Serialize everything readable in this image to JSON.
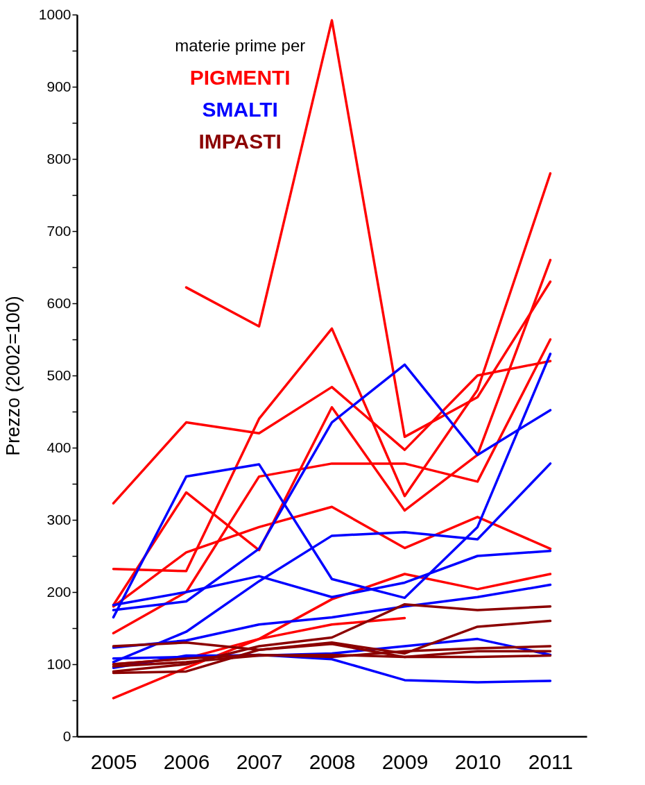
{
  "chart_data": {
    "type": "line",
    "ylabel": "Prezzo (2002=100)",
    "legend_title": "materie prime per",
    "legend": "top left",
    "grid": false,
    "categories": [
      "2005",
      "2006",
      "2007",
      "2008",
      "2009",
      "2010",
      "2011"
    ],
    "ylim": [
      0,
      1000
    ],
    "yticks": [
      0,
      {
        "value": 50,
        "label": null
      },
      100,
      {
        "value": 150,
        "label": null
      },
      200,
      {
        "value": 250,
        "label": null
      },
      300,
      {
        "value": 350,
        "label": null
      },
      400,
      {
        "value": 450,
        "label": null
      },
      500,
      {
        "value": 550,
        "label": null
      },
      600,
      {
        "value": 650,
        "label": null
      },
      700,
      {
        "value": 750,
        "label": null
      },
      800,
      {
        "value": 850,
        "label": null
      },
      900,
      {
        "value": 950,
        "label": null
      },
      1000
    ],
    "series": [
      {
        "name": "PIGMENTI",
        "color": "#ff0000",
        "values": [
          null,
          622,
          568,
          992,
          415,
          470,
          630
        ]
      },
      {
        "color": "#ff0000",
        "values": [
          323,
          435,
          420,
          484,
          397,
          500,
          520
        ]
      },
      {
        "color": "#ff0000",
        "values": [
          232,
          229,
          440,
          565,
          333,
          480,
          780
        ]
      },
      {
        "color": "#ff0000",
        "values": [
          182,
          338,
          258,
          456,
          313,
          390,
          660
        ]
      },
      {
        "color": "#ff0000",
        "values": [
          180,
          255,
          290,
          318,
          261,
          304,
          260
        ]
      },
      {
        "color": "#ff0000",
        "values": [
          143,
          200,
          360,
          378,
          378,
          353,
          550
        ]
      },
      {
        "color": "#ff0000",
        "values": [
          100,
          108,
          135,
          155,
          164,
          null,
          null
        ]
      },
      {
        "color": "#ff0000",
        "values": [
          53,
          95,
          135,
          190,
          225,
          204,
          225
        ]
      },
      {
        "name": "SMALTI",
        "color": "#0000ff",
        "values": [
          165,
          360,
          377,
          218,
          192,
          290,
          530
        ]
      },
      {
        "color": "#0000ff",
        "values": [
          175,
          187,
          260,
          435,
          515,
          390,
          452
        ]
      },
      {
        "color": "#0000ff",
        "values": [
          103,
          145,
          215,
          278,
          283,
          273,
          378
        ]
      },
      {
        "color": "#0000ff",
        "values": [
          182,
          200,
          222,
          193,
          213,
          250,
          257
        ]
      },
      {
        "color": "#0000ff",
        "values": [
          123,
          133,
          155,
          165,
          180,
          193,
          210
        ]
      },
      {
        "color": "#0000ff",
        "values": [
          108,
          110,
          113,
          107,
          78,
          75,
          77
        ]
      },
      {
        "color": "#0000ff",
        "values": [
          95,
          112,
          112,
          115,
          125,
          135,
          113
        ]
      },
      {
        "name": "IMPASTI",
        "color": "#8b0000",
        "values": [
          90,
          100,
          125,
          137,
          183,
          175,
          180
        ]
      },
      {
        "color": "#8b0000",
        "values": [
          88,
          90,
          120,
          130,
          115,
          152,
          160
        ]
      },
      {
        "color": "#8b0000",
        "values": [
          125,
          130,
          120,
          128,
          110,
          110,
          112
        ]
      },
      {
        "color": "#8b0000",
        "values": [
          100,
          108,
          113,
          110,
          118,
          122,
          125
        ]
      },
      {
        "color": "#8b0000",
        "values": [
          97,
          103,
          112,
          113,
          110,
          118,
          118
        ]
      }
    ]
  }
}
